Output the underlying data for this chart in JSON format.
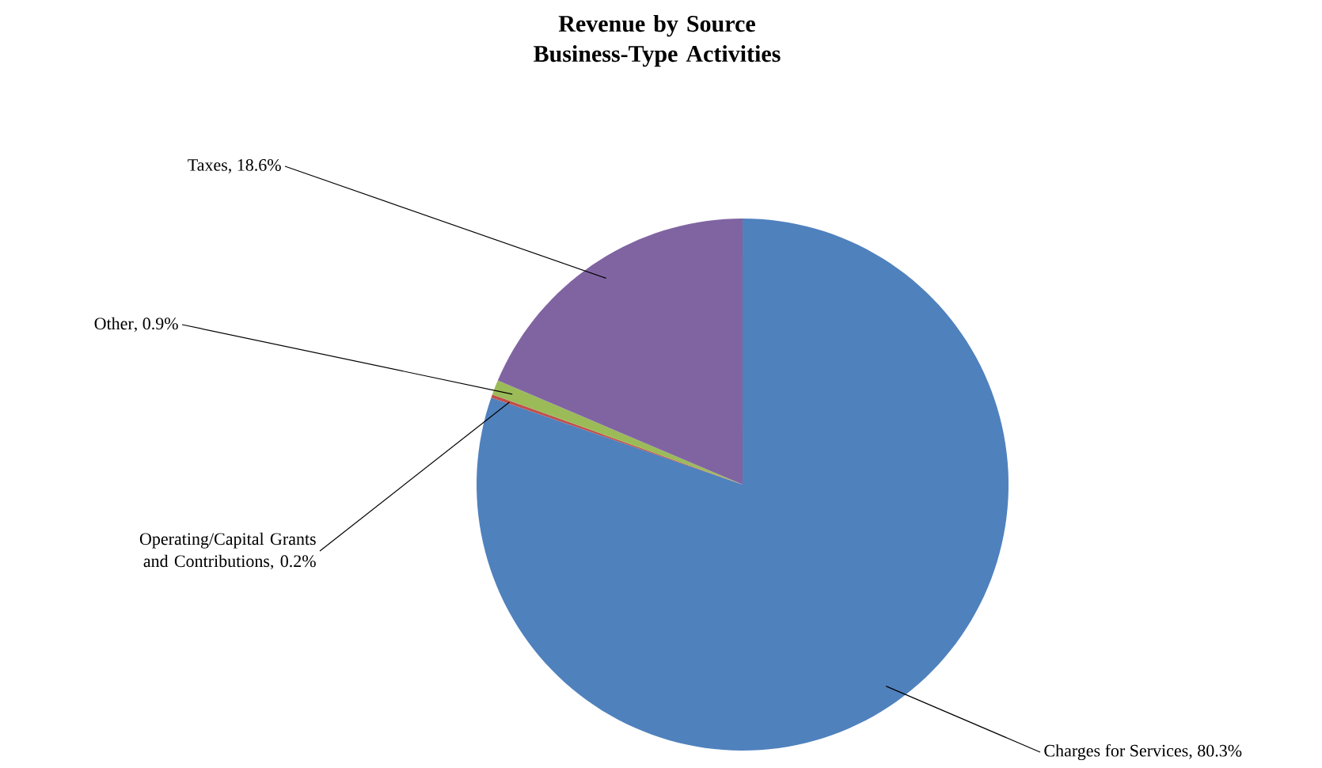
{
  "chart_data": {
    "type": "pie",
    "title": "Revenue by Source\nBusiness-Type Activities",
    "categories": [
      "Charges for Services",
      "Operating/Capital Grants and Contributions",
      "Other",
      "Taxes"
    ],
    "values": [
      80.3,
      0.2,
      0.9,
      18.6
    ],
    "value_labels": [
      ", 80.3%",
      ", 0.2%",
      ", 0.9%",
      ", 18.6%"
    ],
    "colors": [
      "#4f81bd",
      "#c0504d",
      "#9bbb59",
      "#8064a2"
    ]
  }
}
